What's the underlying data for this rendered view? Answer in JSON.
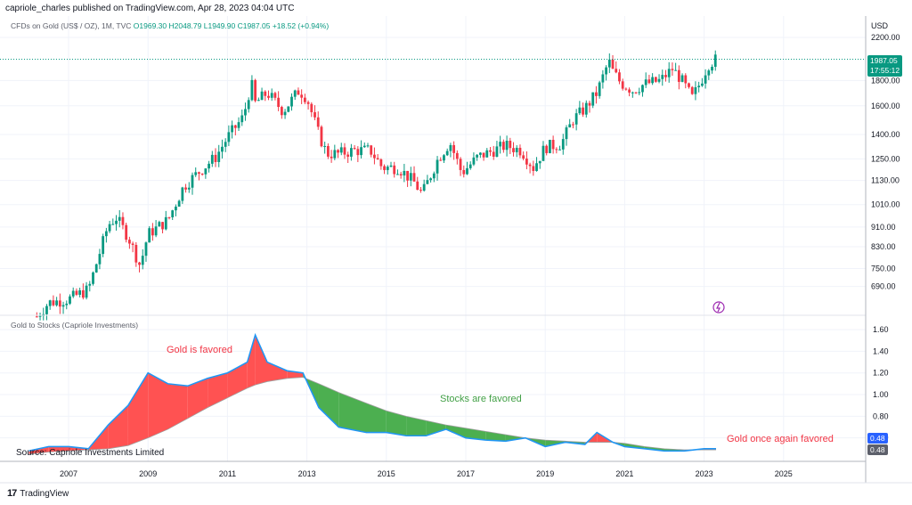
{
  "header": {
    "published": "capriole_charles published on TradingView.com, Apr 28, 2023 04:04 UTC"
  },
  "legend": {
    "symbol": "CFDs on Gold (US$ / OZ), 1M, TVC",
    "open": "O1969.30",
    "high": "H2048.79",
    "low": "L1949.90",
    "close": "C1987.05",
    "change": "+18.52 (+0.94%)"
  },
  "price_axis": {
    "currency": "USD",
    "ticks": [
      "2200.00",
      "1800.00",
      "1600.00",
      "1400.00",
      "1250.00",
      "1130.00",
      "1010.00",
      "910.00",
      "830.00",
      "750.00",
      "690.00"
    ]
  },
  "price_badge": {
    "price": "1987.05",
    "countdown": "17:55:12"
  },
  "indicator": {
    "title": "Gold to Stocks (Capriole Investments)",
    "ticks": [
      "1.60",
      "1.40",
      "1.20",
      "1.00",
      "0.80",
      "0.60"
    ],
    "badge_1": "0.48",
    "badge_2": "0.48"
  },
  "x_axis": {
    "ticks": [
      "2007",
      "2009",
      "2011",
      "2013",
      "2015",
      "2017",
      "2019",
      "2021",
      "2023",
      "2025"
    ]
  },
  "annotations": {
    "gold_favored": "Gold is favored",
    "stocks_favored": "Stocks are favored",
    "gold_again": "Gold once again favored",
    "source": "Source: Capriole Investments Limited"
  },
  "footer": {
    "brand": "TradingView"
  },
  "colors": {
    "up": "#089981",
    "down": "#f23645",
    "gold_fill": "#ff5252",
    "stock_fill": "#4caf50",
    "ratio_line": "#2196f3"
  },
  "chart_data": [
    {
      "type": "candlestick",
      "name": "CFDs on Gold (US$ / OZ), 1M, TVC",
      "scale": "log",
      "x": [
        2006.2,
        2006.5,
        2007.0,
        2007.5,
        2008.0,
        2008.2,
        2008.5,
        2008.8,
        2009.0,
        2009.5,
        2009.9,
        2010.3,
        2010.7,
        2011.0,
        2011.4,
        2011.6,
        2011.7,
        2012.0,
        2012.4,
        2012.8,
        2013.0,
        2013.3,
        2013.5,
        2013.8,
        2014.2,
        2014.6,
        2014.9,
        2015.3,
        2015.7,
        2015.9,
        2016.3,
        2016.6,
        2016.9,
        2017.3,
        2017.7,
        2018.0,
        2018.4,
        2018.7,
        2019.0,
        2019.4,
        2019.7,
        2020.0,
        2020.3,
        2020.6,
        2020.7,
        2020.9,
        2021.2,
        2021.5,
        2021.9,
        2022.2,
        2022.4,
        2022.7,
        2022.9,
        2023.1,
        2023.3
      ],
      "close": [
        600,
        640,
        650,
        680,
        920,
        950,
        870,
        760,
        880,
        940,
        1100,
        1180,
        1260,
        1380,
        1520,
        1780,
        1620,
        1700,
        1560,
        1720,
        1660,
        1400,
        1280,
        1280,
        1300,
        1300,
        1200,
        1200,
        1120,
        1060,
        1250,
        1350,
        1170,
        1260,
        1300,
        1330,
        1300,
        1200,
        1320,
        1340,
        1500,
        1580,
        1700,
        1970,
        1880,
        1780,
        1720,
        1770,
        1800,
        1900,
        1820,
        1660,
        1780,
        1940,
        1987
      ],
      "ylim": [
        650,
        2200
      ]
    },
    {
      "type": "area",
      "name": "Gold to Stocks (Capriole Investments)",
      "x": [
        2006.0,
        2006.5,
        2007.0,
        2007.5,
        2008.0,
        2008.5,
        2009.0,
        2009.5,
        2010.0,
        2010.5,
        2011.0,
        2011.5,
        2011.7,
        2012.0,
        2012.5,
        2012.9,
        2013.3,
        2013.8,
        2014.5,
        2015.0,
        2015.5,
        2016.0,
        2016.5,
        2017.0,
        2017.5,
        2018.0,
        2018.5,
        2019.0,
        2019.5,
        2020.0,
        2020.3,
        2020.7,
        2021.0,
        2021.5,
        2022.0,
        2022.5,
        2023.0,
        2023.3
      ],
      "ratio": [
        0.48,
        0.52,
        0.52,
        0.5,
        0.72,
        0.9,
        1.2,
        1.1,
        1.08,
        1.15,
        1.2,
        1.3,
        1.55,
        1.3,
        1.22,
        1.2,
        0.88,
        0.7,
        0.65,
        0.65,
        0.62,
        0.62,
        0.68,
        0.6,
        0.58,
        0.57,
        0.6,
        0.52,
        0.56,
        0.54,
        0.65,
        0.56,
        0.52,
        0.5,
        0.48,
        0.48,
        0.5,
        0.5
      ],
      "baseline": [
        0.45,
        0.47,
        0.48,
        0.49,
        0.5,
        0.53,
        0.6,
        0.68,
        0.78,
        0.88,
        0.97,
        1.06,
        1.09,
        1.12,
        1.15,
        1.16,
        1.1,
        1.02,
        0.92,
        0.85,
        0.8,
        0.76,
        0.72,
        0.69,
        0.66,
        0.63,
        0.6,
        0.58,
        0.57,
        0.56,
        0.56,
        0.56,
        0.55,
        0.52,
        0.5,
        0.49,
        0.49,
        0.49
      ],
      "ylim": [
        0.4,
        1.65
      ]
    }
  ]
}
